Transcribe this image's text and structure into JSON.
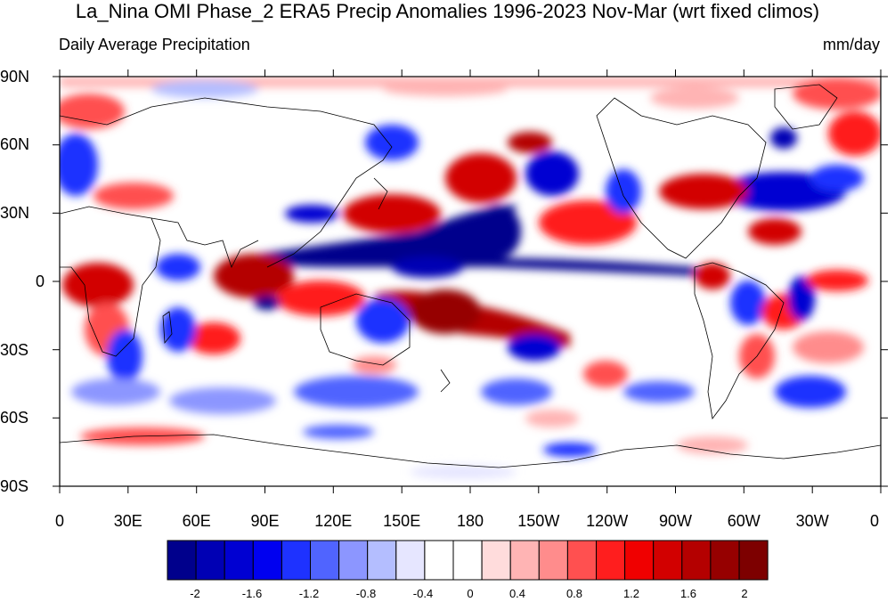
{
  "title": "La_Nina OMI Phase_2 ERA5 Precip Anomalies 1996-2023 Nov-Mar (wrt fixed climos)",
  "subtitle_left": "Daily Average Precipitation",
  "subtitle_right": "mm/day",
  "y_ticks": [
    "90N",
    "60N",
    "30N",
    "0",
    "30S",
    "60S",
    "90S"
  ],
  "x_ticks": [
    "0",
    "30E",
    "60E",
    "90E",
    "120E",
    "150E",
    "180",
    "150W",
    "120W",
    "90W",
    "60W",
    "30W",
    "0"
  ],
  "colorbar": {
    "colors": [
      "#00008c",
      "#0000b4",
      "#0000d2",
      "#0000f0",
      "#1e32ff",
      "#5064ff",
      "#8c96ff",
      "#b4beff",
      "#e6e6ff",
      "#ffffff",
      "#ffffff",
      "#ffdcdc",
      "#ffb4b4",
      "#ff8c8c",
      "#ff5050",
      "#ff1e1e",
      "#f00000",
      "#d20000",
      "#b40000",
      "#960000",
      "#7d0000"
    ],
    "labels": [
      "-2",
      "-1.6",
      "-1.2",
      "-0.8",
      "-0.4",
      "0",
      "0.4",
      "0.8",
      "1.2",
      "1.6",
      "2"
    ]
  },
  "map_colors": {
    "strong_red": "#b40000",
    "red": "#ff3030",
    "light_red": "#ffb4b4",
    "strong_blue": "#00008c",
    "blue": "#1e32ff",
    "light_blue": "#b4beff",
    "coast": "#000000"
  }
}
